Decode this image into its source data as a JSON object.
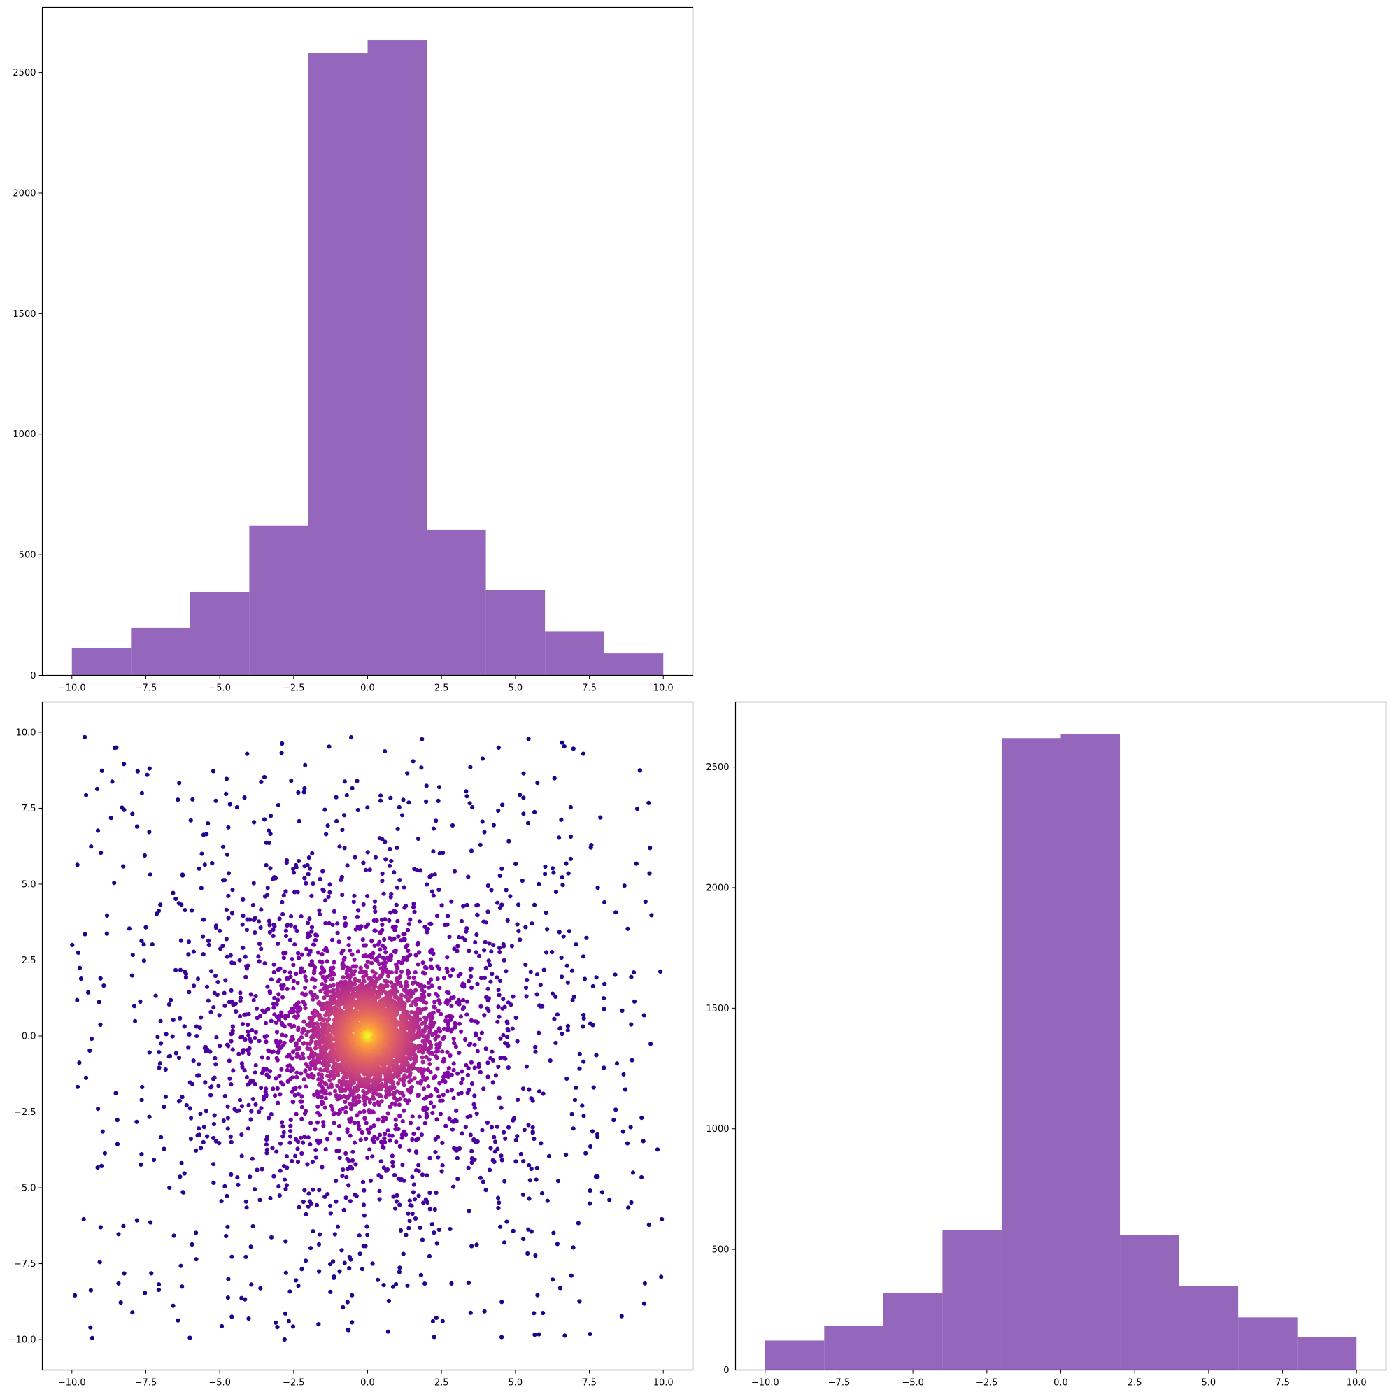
{
  "chart_data": [
    {
      "type": "histogram",
      "panel": "top-left",
      "bin_edges": [
        -10,
        -8,
        -6,
        -4,
        -2,
        0,
        2,
        4,
        6,
        8,
        10
      ],
      "counts": [
        112,
        196,
        345,
        620,
        2580,
        2635,
        605,
        355,
        183,
        91
      ],
      "xlim": [
        -11,
        11
      ],
      "ylim": [
        0,
        2770
      ],
      "xticks": [
        -10.0,
        -7.5,
        -5.0,
        -2.5,
        0.0,
        2.5,
        5.0,
        7.5,
        10.0
      ],
      "xtick_labels": [
        "−10.0",
        "−7.5",
        "−5.0",
        "−2.5",
        "0.0",
        "2.5",
        "5.0",
        "7.5",
        "10.0"
      ],
      "yticks": [
        0,
        500,
        1000,
        1500,
        2000,
        2500
      ],
      "ytick_labels": [
        "0",
        "500",
        "1000",
        "1500",
        "2000",
        "2500"
      ],
      "color": "#9467bd",
      "grid": false
    },
    {
      "type": "scatter",
      "panel": "bottom-left",
      "n_points": 5000,
      "distribution": "heavy-tailed, centered at (0, 0), clipped to [-10, 10] on both axes",
      "color_map": "plasma (point density: dark purple #2c0594 sparse → magenta #c43b8d → yellow #f0f921 dense center)",
      "xlim": [
        -11,
        11
      ],
      "ylim": [
        -11,
        11
      ],
      "xticks": [
        -10.0,
        -7.5,
        -5.0,
        -2.5,
        0.0,
        2.5,
        5.0,
        7.5,
        10.0
      ],
      "xtick_labels": [
        "−10.0",
        "−7.5",
        "−5.0",
        "−2.5",
        "0.0",
        "2.5",
        "5.0",
        "7.5",
        "10.0"
      ],
      "yticks": [
        -10.0,
        -7.5,
        -5.0,
        -2.5,
        0.0,
        2.5,
        5.0,
        7.5,
        10.0
      ],
      "ytick_labels": [
        "−10.0",
        "−7.5",
        "−5.0",
        "−2.5",
        "0.0",
        "2.5",
        "5.0",
        "7.5",
        "10.0"
      ],
      "grid": false
    },
    {
      "type": "histogram",
      "panel": "bottom-right",
      "bin_edges": [
        -10,
        -8,
        -6,
        -4,
        -2,
        0,
        2,
        4,
        6,
        8,
        10
      ],
      "counts": [
        122,
        183,
        320,
        580,
        2620,
        2635,
        560,
        348,
        218,
        135
      ],
      "xlim": [
        -11,
        11
      ],
      "ylim": [
        0,
        2770
      ],
      "xticks": [
        -10.0,
        -7.5,
        -5.0,
        -2.5,
        0.0,
        2.5,
        5.0,
        7.5,
        10.0
      ],
      "xtick_labels": [
        "−10.0",
        "−7.5",
        "−5.0",
        "−2.5",
        "0.0",
        "2.5",
        "5.0",
        "7.5",
        "10.0"
      ],
      "yticks": [
        0,
        500,
        1000,
        1500,
        2000,
        2500
      ],
      "ytick_labels": [
        "0",
        "500",
        "1000",
        "1500",
        "2000",
        "2500"
      ],
      "color": "#9467bd",
      "grid": false
    }
  ]
}
